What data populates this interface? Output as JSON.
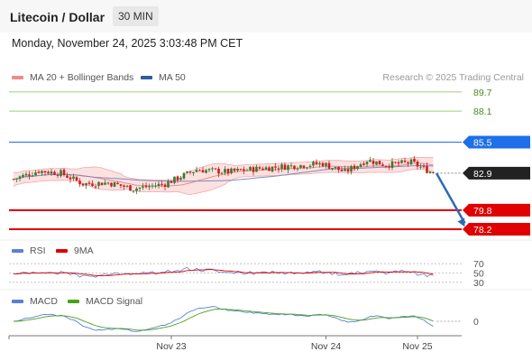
{
  "header": {
    "title": "Litecoin / Dollar",
    "timeframe": "30 MIN"
  },
  "datetime": "Monday, November 24, 2025 3:03:48 PM CET",
  "legend_main": [
    {
      "label": "MA 20 + Bollinger Bands",
      "color": "#f08a8a"
    },
    {
      "label": "MA 50",
      "color": "#2f5c9e"
    }
  ],
  "credit": "Research © 2025 Trading Central",
  "legend_rsi": [
    {
      "label": "RSI",
      "color": "#5b7fd6"
    },
    {
      "label": "9MA",
      "color": "#e00000"
    }
  ],
  "legend_macd": [
    {
      "label": "MACD",
      "color": "#5b7fd6"
    },
    {
      "label": "MACD Signal",
      "color": "#4aa01e"
    }
  ],
  "colors": {
    "resistance": "#1e6fe8",
    "support": "#e00000",
    "target": "#7ab648",
    "current": "#222222",
    "bull": "#3a7a2e",
    "bear": "#cc1f1f",
    "arrow": "#2f6bb5"
  },
  "chart_data": [
    {
      "type": "candlestick",
      "ylim": [
        77.6,
        90.6
      ],
      "levels": [
        {
          "value": 89.7,
          "label": "89.7",
          "kind": "target"
        },
        {
          "value": 88.1,
          "label": "88.1",
          "kind": "target"
        },
        {
          "value": 85.5,
          "label": "85.5",
          "kind": "resistance"
        },
        {
          "value": 82.9,
          "label": "82.9",
          "kind": "current"
        },
        {
          "value": 79.8,
          "label": "79.8",
          "kind": "support"
        },
        {
          "value": 78.2,
          "label": "78.2",
          "kind": "support"
        }
      ],
      "x_ticks": [
        "Nov 23",
        "Nov 24",
        "Nov 25"
      ],
      "x_tick_index": [
        50,
        99,
        128
      ],
      "n_bars": 133,
      "forecast_arrow": {
        "from_index": 134,
        "from_value": 82.9,
        "to_index": 143,
        "to_value": 78.4
      },
      "anchors": [
        [
          0,
          82.4
        ],
        [
          8,
          83.1
        ],
        [
          15,
          82.9
        ],
        [
          22,
          82.0
        ],
        [
          30,
          82.1
        ],
        [
          38,
          81.6
        ],
        [
          48,
          82.0
        ],
        [
          58,
          83.2
        ],
        [
          68,
          83.0
        ],
        [
          78,
          83.3
        ],
        [
          88,
          83.5
        ],
        [
          98,
          83.7
        ],
        [
          105,
          83.0
        ],
        [
          112,
          84.0
        ],
        [
          118,
          83.6
        ],
        [
          126,
          83.8
        ],
        [
          133,
          82.9
        ]
      ]
    },
    {
      "type": "line",
      "name": "RSI",
      "ylim": [
        20,
        80
      ],
      "levels": [
        70,
        50,
        30
      ],
      "level_labels": [
        "70",
        "50",
        "30"
      ]
    },
    {
      "type": "line",
      "name": "MACD",
      "levels": [
        0
      ],
      "level_labels": [
        "0"
      ]
    }
  ]
}
